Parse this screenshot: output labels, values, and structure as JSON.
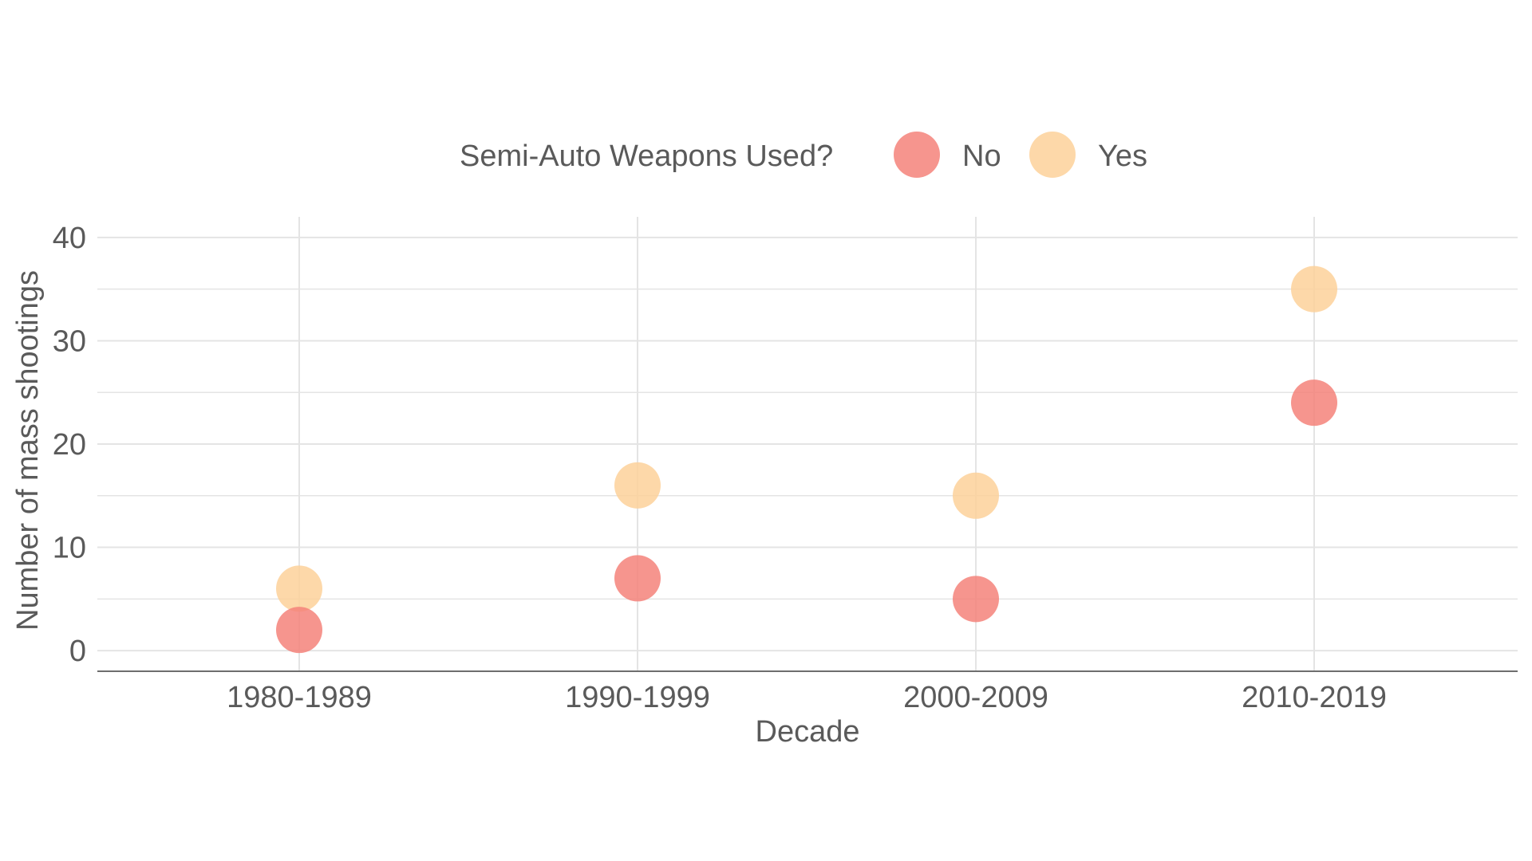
{
  "chart_data": {
    "type": "scatter",
    "xlabel": "Decade",
    "ylabel": "Number of mass shootings",
    "categories": [
      "1980-1989",
      "1990-1999",
      "2000-2009",
      "2010-2019"
    ],
    "ylim": [
      -2,
      42
    ],
    "yticks": [
      0,
      10,
      20,
      30,
      40
    ],
    "grid": true,
    "legend": {
      "title": "Semi-Auto Weapons Used?",
      "placement": "top"
    },
    "series": [
      {
        "name": "No",
        "color": "#f4827a",
        "values": [
          2,
          7,
          5,
          24
        ]
      },
      {
        "name": "Yes",
        "color": "#fdd19a",
        "values": [
          6,
          16,
          15,
          35
        ]
      }
    ]
  }
}
